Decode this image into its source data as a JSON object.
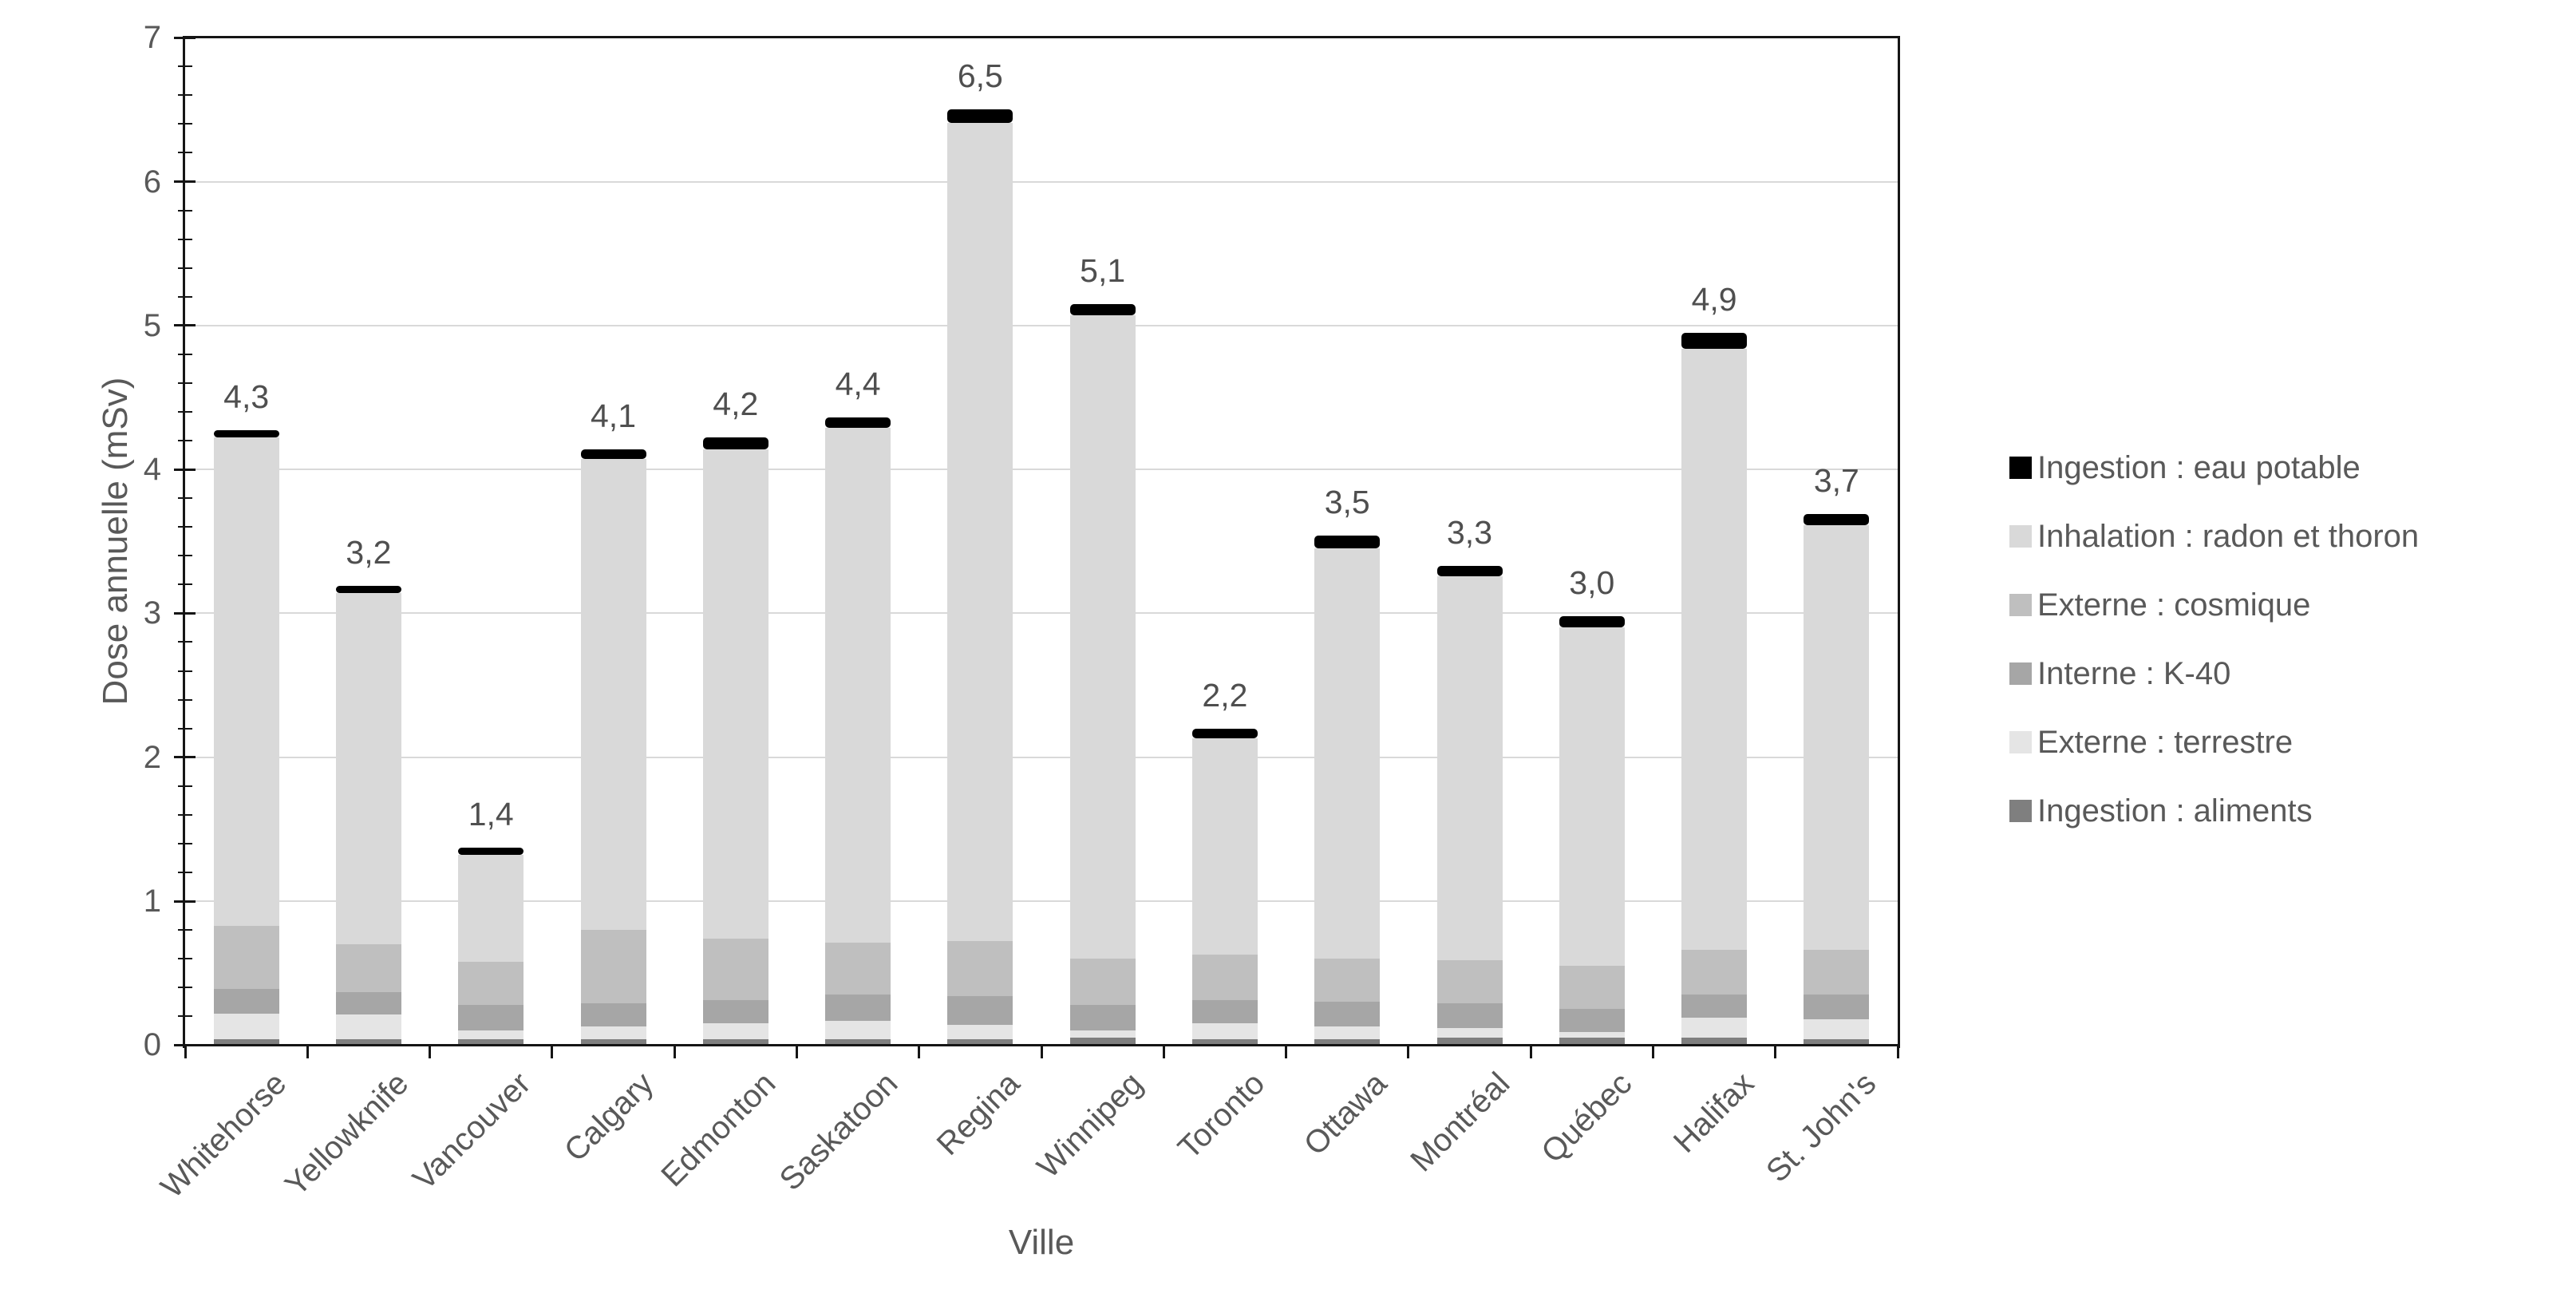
{
  "axes": {
    "y_title": "Dose annuelle (mSv)",
    "x_title": "Ville",
    "y_tick_labels": [
      "0",
      "1",
      "2",
      "3",
      "4",
      "5",
      "6",
      "7"
    ]
  },
  "colors": {
    "axis": "#151515",
    "gridline": "#d9d9d9",
    "text": "#595959"
  },
  "chart_data": {
    "type": "bar",
    "stacked": true,
    "title": "",
    "xlabel": "Ville",
    "ylabel": "Dose annuelle (mSv)",
    "ylim": [
      0,
      7
    ],
    "y_major_step": 1,
    "y_minor_step": 0.2,
    "grid": true,
    "legend_position": "right",
    "bar_total_labels": [
      "4,3",
      "3,2",
      "1,4",
      "4,1",
      "4,2",
      "4,4",
      "6,5",
      "5,1",
      "2,2",
      "3,5",
      "3,3",
      "3,0",
      "4,9",
      "3,7"
    ],
    "categories": [
      "Whitehorse",
      "Yellowknife",
      "Vancouver",
      "Calgary",
      "Edmonton",
      "Saskatoon",
      "Regina",
      "Winnipeg",
      "Toronto",
      "Ottawa",
      "Montréal",
      "Québec",
      "Halifax",
      "St. John's"
    ],
    "series": [
      {
        "name": "Ingestion : aliments",
        "color": "#7f7f7f",
        "values": [
          0.04,
          0.04,
          0.04,
          0.04,
          0.04,
          0.04,
          0.04,
          0.05,
          0.04,
          0.04,
          0.05,
          0.05,
          0.05,
          0.04
        ]
      },
      {
        "name": "Externe : terrestre",
        "color": "#e5e5e5",
        "values": [
          0.18,
          0.17,
          0.06,
          0.09,
          0.11,
          0.13,
          0.1,
          0.05,
          0.11,
          0.09,
          0.07,
          0.04,
          0.14,
          0.14
        ]
      },
      {
        "name": "Interne : K-40",
        "color": "#a6a6a6",
        "values": [
          0.17,
          0.16,
          0.18,
          0.16,
          0.16,
          0.18,
          0.2,
          0.18,
          0.16,
          0.17,
          0.17,
          0.16,
          0.16,
          0.17
        ]
      },
      {
        "name": "Externe : cosmique",
        "color": "#bfbfbf",
        "values": [
          0.44,
          0.33,
          0.3,
          0.51,
          0.43,
          0.36,
          0.38,
          0.32,
          0.32,
          0.3,
          0.3,
          0.3,
          0.31,
          0.31
        ]
      },
      {
        "name": "Inhalation : radon et thoron",
        "color": "#d9d9d9",
        "values": [
          3.39,
          2.44,
          0.74,
          3.27,
          3.4,
          3.58,
          5.69,
          4.47,
          1.5,
          2.85,
          2.67,
          2.35,
          4.18,
          2.95
        ]
      },
      {
        "name": "Ingestion : eau potable",
        "color": "#000000",
        "values": [
          0.05,
          0.05,
          0.05,
          0.07,
          0.08,
          0.07,
          0.09,
          0.08,
          0.07,
          0.09,
          0.07,
          0.08,
          0.11,
          0.08
        ]
      }
    ],
    "legend_top_to_bottom": [
      "Ingestion : eau potable",
      "Inhalation : radon et thoron",
      "Externe : cosmique",
      "Interne : K-40",
      "Externe : terrestre",
      "Ingestion : aliments"
    ]
  }
}
